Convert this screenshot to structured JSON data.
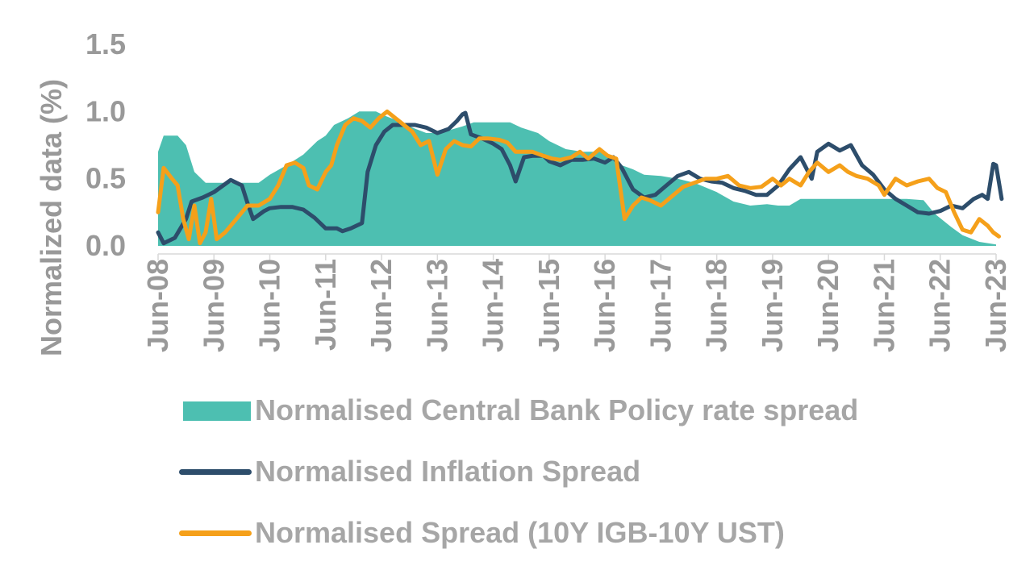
{
  "chart_data": {
    "type": "area",
    "title": "",
    "xlabel": "",
    "ylabel": "Normalized data (%)",
    "ylim": [
      0,
      1.5
    ],
    "yticks": [
      "0.0",
      "0.5",
      "1.0",
      "1.5"
    ],
    "x_tick_labels": [
      "Jun-08",
      "Jun-09",
      "Jun-10",
      "Jun-11",
      "Jun-12",
      "Jun-13",
      "Jun-14",
      "Jun-15",
      "Jun-16",
      "Jun-17",
      "Jun-18",
      "Jun-19",
      "Jun-20",
      "Jun-21",
      "Jun-22",
      "Jun-23"
    ],
    "x_range": [
      "Jun-08",
      "Jun-23"
    ],
    "grid": false,
    "legend_position": "bottom",
    "series": [
      {
        "name": "Normalised Central Bank Policy rate spread",
        "kind": "area",
        "color": "#4dbfb1",
        "points": [
          [
            0,
            0.7
          ],
          [
            0.1,
            0.82
          ],
          [
            0.35,
            0.82
          ],
          [
            0.5,
            0.75
          ],
          [
            0.65,
            0.55
          ],
          [
            0.85,
            0.47
          ],
          [
            1.3,
            0.47
          ],
          [
            1.5,
            0.47
          ],
          [
            1.8,
            0.47
          ],
          [
            2.0,
            0.53
          ],
          [
            2.3,
            0.6
          ],
          [
            2.6,
            0.68
          ],
          [
            2.85,
            0.78
          ],
          [
            3.0,
            0.82
          ],
          [
            3.15,
            0.9
          ],
          [
            3.4,
            0.95
          ],
          [
            3.6,
            1.0
          ],
          [
            3.9,
            1.0
          ],
          [
            4.05,
            0.97
          ],
          [
            4.3,
            0.93
          ],
          [
            4.55,
            0.88
          ],
          [
            4.8,
            0.84
          ],
          [
            5.0,
            0.84
          ],
          [
            5.2,
            0.86
          ],
          [
            5.45,
            0.89
          ],
          [
            5.65,
            0.92
          ],
          [
            6.0,
            0.92
          ],
          [
            6.3,
            0.92
          ],
          [
            6.5,
            0.88
          ],
          [
            6.8,
            0.84
          ],
          [
            7.0,
            0.78
          ],
          [
            7.3,
            0.72
          ],
          [
            7.6,
            0.7
          ],
          [
            7.9,
            0.7
          ],
          [
            8.1,
            0.67
          ],
          [
            8.3,
            0.6
          ],
          [
            8.5,
            0.57
          ],
          [
            8.7,
            0.53
          ],
          [
            9.0,
            0.52
          ],
          [
            9.3,
            0.5
          ],
          [
            9.6,
            0.47
          ],
          [
            10.0,
            0.4
          ],
          [
            10.3,
            0.33
          ],
          [
            10.6,
            0.3
          ],
          [
            10.9,
            0.31
          ],
          [
            11.1,
            0.3
          ],
          [
            11.3,
            0.3
          ],
          [
            11.5,
            0.35
          ],
          [
            11.8,
            0.35
          ],
          [
            12.2,
            0.35
          ],
          [
            12.6,
            0.35
          ],
          [
            13.0,
            0.35
          ],
          [
            13.4,
            0.35
          ],
          [
            13.7,
            0.34
          ],
          [
            13.9,
            0.24
          ],
          [
            14.2,
            0.14
          ],
          [
            14.4,
            0.08
          ],
          [
            14.7,
            0.03
          ],
          [
            15.0,
            0.01
          ]
        ]
      },
      {
        "name": "Normalised Inflation Spread",
        "kind": "line",
        "color": "#2d4d6b",
        "points": [
          [
            0,
            0.1
          ],
          [
            0.1,
            0.02
          ],
          [
            0.3,
            0.06
          ],
          [
            0.5,
            0.2
          ],
          [
            0.6,
            0.33
          ],
          [
            0.8,
            0.36
          ],
          [
            1.0,
            0.4
          ],
          [
            1.2,
            0.46
          ],
          [
            1.3,
            0.49
          ],
          [
            1.5,
            0.45
          ],
          [
            1.6,
            0.32
          ],
          [
            1.7,
            0.2
          ],
          [
            1.9,
            0.26
          ],
          [
            2.0,
            0.28
          ],
          [
            2.2,
            0.29
          ],
          [
            2.4,
            0.29
          ],
          [
            2.6,
            0.27
          ],
          [
            2.8,
            0.21
          ],
          [
            3.0,
            0.13
          ],
          [
            3.2,
            0.13
          ],
          [
            3.3,
            0.11
          ],
          [
            3.45,
            0.13
          ],
          [
            3.55,
            0.15
          ],
          [
            3.65,
            0.17
          ],
          [
            3.75,
            0.55
          ],
          [
            3.9,
            0.75
          ],
          [
            4.05,
            0.85
          ],
          [
            4.2,
            0.9
          ],
          [
            4.4,
            0.9
          ],
          [
            4.6,
            0.9
          ],
          [
            4.8,
            0.88
          ],
          [
            5.0,
            0.84
          ],
          [
            5.2,
            0.87
          ],
          [
            5.35,
            0.93
          ],
          [
            5.45,
            0.98
          ],
          [
            5.5,
            0.99
          ],
          [
            5.6,
            0.83
          ],
          [
            5.8,
            0.8
          ],
          [
            6.0,
            0.76
          ],
          [
            6.15,
            0.72
          ],
          [
            6.3,
            0.6
          ],
          [
            6.4,
            0.48
          ],
          [
            6.55,
            0.66
          ],
          [
            6.7,
            0.67
          ],
          [
            6.9,
            0.67
          ],
          [
            7.0,
            0.63
          ],
          [
            7.2,
            0.6
          ],
          [
            7.4,
            0.64
          ],
          [
            7.6,
            0.64
          ],
          [
            7.8,
            0.65
          ],
          [
            8.0,
            0.62
          ],
          [
            8.15,
            0.66
          ],
          [
            8.3,
            0.58
          ],
          [
            8.5,
            0.42
          ],
          [
            8.7,
            0.36
          ],
          [
            8.9,
            0.38
          ],
          [
            9.1,
            0.45
          ],
          [
            9.3,
            0.52
          ],
          [
            9.5,
            0.55
          ],
          [
            9.7,
            0.5
          ],
          [
            9.9,
            0.48
          ],
          [
            10.1,
            0.47
          ],
          [
            10.3,
            0.43
          ],
          [
            10.5,
            0.41
          ],
          [
            10.7,
            0.38
          ],
          [
            10.9,
            0.38
          ],
          [
            11.1,
            0.45
          ],
          [
            11.3,
            0.57
          ],
          [
            11.5,
            0.66
          ],
          [
            11.7,
            0.5
          ],
          [
            11.8,
            0.7
          ],
          [
            12.0,
            0.76
          ],
          [
            12.2,
            0.71
          ],
          [
            12.4,
            0.75
          ],
          [
            12.6,
            0.6
          ],
          [
            12.8,
            0.53
          ],
          [
            13.0,
            0.42
          ],
          [
            13.2,
            0.35
          ],
          [
            13.4,
            0.3
          ],
          [
            13.6,
            0.25
          ],
          [
            13.8,
            0.24
          ],
          [
            14.0,
            0.26
          ],
          [
            14.2,
            0.3
          ],
          [
            14.4,
            0.28
          ],
          [
            14.6,
            0.35
          ],
          [
            14.75,
            0.38
          ],
          [
            14.85,
            0.35
          ],
          [
            14.95,
            0.61
          ],
          [
            15.0,
            0.6
          ],
          [
            15.1,
            0.35
          ]
        ]
      },
      {
        "name": "Normalised Spread (10Y IGB-10Y UST)",
        "kind": "line",
        "color": "#f5a01a",
        "points": [
          [
            0,
            0.25
          ],
          [
            0.1,
            0.58
          ],
          [
            0.25,
            0.5
          ],
          [
            0.35,
            0.45
          ],
          [
            0.45,
            0.2
          ],
          [
            0.55,
            0.05
          ],
          [
            0.65,
            0.3
          ],
          [
            0.75,
            0.02
          ],
          [
            0.85,
            0.1
          ],
          [
            0.95,
            0.35
          ],
          [
            1.05,
            0.05
          ],
          [
            1.2,
            0.1
          ],
          [
            1.4,
            0.2
          ],
          [
            1.6,
            0.3
          ],
          [
            1.8,
            0.3
          ],
          [
            2.0,
            0.35
          ],
          [
            2.15,
            0.45
          ],
          [
            2.3,
            0.6
          ],
          [
            2.45,
            0.62
          ],
          [
            2.6,
            0.58
          ],
          [
            2.7,
            0.45
          ],
          [
            2.85,
            0.42
          ],
          [
            3.0,
            0.55
          ],
          [
            3.1,
            0.6
          ],
          [
            3.2,
            0.75
          ],
          [
            3.35,
            0.9
          ],
          [
            3.5,
            0.95
          ],
          [
            3.65,
            0.93
          ],
          [
            3.8,
            0.88
          ],
          [
            3.95,
            0.95
          ],
          [
            4.1,
            1.0
          ],
          [
            4.25,
            0.95
          ],
          [
            4.4,
            0.9
          ],
          [
            4.55,
            0.85
          ],
          [
            4.7,
            0.75
          ],
          [
            4.85,
            0.78
          ],
          [
            5.0,
            0.53
          ],
          [
            5.15,
            0.72
          ],
          [
            5.3,
            0.78
          ],
          [
            5.45,
            0.75
          ],
          [
            5.6,
            0.74
          ],
          [
            5.75,
            0.8
          ],
          [
            5.9,
            0.8
          ],
          [
            6.1,
            0.79
          ],
          [
            6.25,
            0.77
          ],
          [
            6.4,
            0.7
          ],
          [
            6.55,
            0.7
          ],
          [
            6.7,
            0.7
          ],
          [
            6.9,
            0.67
          ],
          [
            7.05,
            0.65
          ],
          [
            7.2,
            0.64
          ],
          [
            7.4,
            0.66
          ],
          [
            7.55,
            0.7
          ],
          [
            7.7,
            0.65
          ],
          [
            7.9,
            0.72
          ],
          [
            8.05,
            0.67
          ],
          [
            8.2,
            0.65
          ],
          [
            8.35,
            0.2
          ],
          [
            8.5,
            0.3
          ],
          [
            8.65,
            0.36
          ],
          [
            8.8,
            0.34
          ],
          [
            9.0,
            0.3
          ],
          [
            9.2,
            0.37
          ],
          [
            9.4,
            0.44
          ],
          [
            9.6,
            0.47
          ],
          [
            9.8,
            0.5
          ],
          [
            10.0,
            0.5
          ],
          [
            10.2,
            0.52
          ],
          [
            10.4,
            0.45
          ],
          [
            10.6,
            0.43
          ],
          [
            10.8,
            0.44
          ],
          [
            11.0,
            0.5
          ],
          [
            11.15,
            0.45
          ],
          [
            11.3,
            0.5
          ],
          [
            11.5,
            0.45
          ],
          [
            11.65,
            0.55
          ],
          [
            11.8,
            0.62
          ],
          [
            12.0,
            0.55
          ],
          [
            12.2,
            0.6
          ],
          [
            12.35,
            0.55
          ],
          [
            12.5,
            0.52
          ],
          [
            12.7,
            0.5
          ],
          [
            12.9,
            0.45
          ],
          [
            13.0,
            0.38
          ],
          [
            13.2,
            0.5
          ],
          [
            13.4,
            0.45
          ],
          [
            13.6,
            0.48
          ],
          [
            13.8,
            0.5
          ],
          [
            13.95,
            0.43
          ],
          [
            14.1,
            0.4
          ],
          [
            14.25,
            0.25
          ],
          [
            14.4,
            0.12
          ],
          [
            14.55,
            0.1
          ],
          [
            14.7,
            0.2
          ],
          [
            14.85,
            0.15
          ],
          [
            14.95,
            0.1
          ],
          [
            15.05,
            0.07
          ]
        ]
      }
    ]
  }
}
